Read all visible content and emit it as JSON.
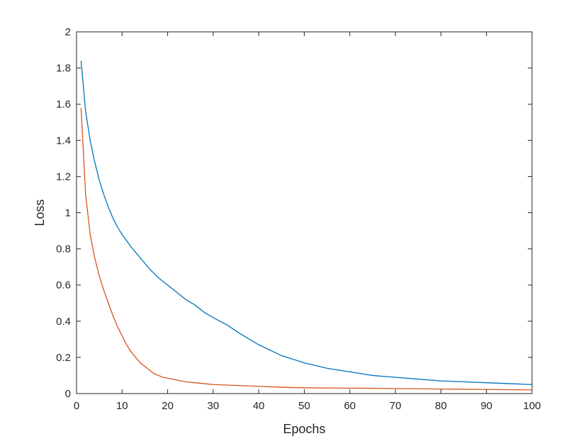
{
  "chart_data": {
    "type": "line",
    "title": "",
    "xlabel": "Epochs",
    "ylabel": "Loss",
    "xlim": [
      0,
      100
    ],
    "ylim": [
      0,
      2
    ],
    "x_ticks": [
      0,
      10,
      20,
      30,
      40,
      50,
      60,
      70,
      80,
      90,
      100
    ],
    "y_ticks": [
      0,
      0.2,
      0.4,
      0.6,
      0.8,
      1,
      1.2,
      1.4,
      1.6,
      1.8,
      2
    ],
    "grid": false,
    "legend": "none",
    "box": true,
    "series": [
      {
        "color": "#0072BD",
        "x": [
          1,
          2,
          3,
          4,
          5,
          6,
          7,
          8,
          9,
          10,
          12,
          14,
          16,
          18,
          20,
          22,
          24,
          26,
          28,
          30,
          33,
          36,
          40,
          45,
          50,
          55,
          60,
          65,
          70,
          75,
          80,
          85,
          90,
          95,
          100
        ],
        "y": [
          1.84,
          1.56,
          1.4,
          1.28,
          1.18,
          1.1,
          1.03,
          0.97,
          0.92,
          0.88,
          0.81,
          0.75,
          0.69,
          0.64,
          0.6,
          0.56,
          0.52,
          0.49,
          0.45,
          0.42,
          0.38,
          0.33,
          0.27,
          0.21,
          0.17,
          0.14,
          0.12,
          0.1,
          0.09,
          0.08,
          0.07,
          0.065,
          0.06,
          0.055,
          0.05
        ]
      },
      {
        "color": "#D95319",
        "x": [
          1,
          2,
          3,
          4,
          5,
          6,
          7,
          8,
          9,
          10,
          11,
          12,
          13,
          14,
          15,
          16,
          17,
          18,
          19,
          20,
          22,
          24,
          26,
          28,
          30,
          35,
          40,
          45,
          50,
          60,
          70,
          80,
          90,
          100
        ],
        "y": [
          1.58,
          1.1,
          0.88,
          0.75,
          0.65,
          0.57,
          0.5,
          0.43,
          0.37,
          0.32,
          0.27,
          0.23,
          0.2,
          0.17,
          0.15,
          0.13,
          0.11,
          0.1,
          0.09,
          0.085,
          0.075,
          0.065,
          0.06,
          0.055,
          0.05,
          0.045,
          0.04,
          0.035,
          0.032,
          0.03,
          0.028,
          0.025,
          0.023,
          0.02
        ]
      }
    ]
  }
}
